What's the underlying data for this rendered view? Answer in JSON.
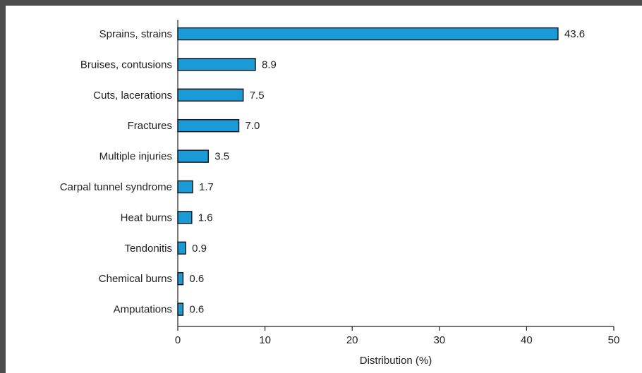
{
  "chart_data": {
    "type": "bar",
    "orientation": "horizontal",
    "categories": [
      "Sprains, strains",
      "Bruises, contusions",
      "Cuts, lacerations",
      "Fractures",
      "Multiple injuries",
      "Carpal tunnel syndrome",
      "Heat burns",
      "Tendonitis",
      "Chemical burns",
      "Amputations"
    ],
    "values": [
      43.6,
      8.9,
      7.5,
      7.0,
      3.5,
      1.7,
      1.6,
      0.9,
      0.6,
      0.6
    ],
    "value_labels": [
      "43.6",
      "8.9",
      "7.5",
      "7.0",
      "3.5",
      "1.7",
      "1.6",
      "0.9",
      "0.6",
      "0.6"
    ],
    "xlabel": "Distribution (%)",
    "ylabel": "",
    "xlim": [
      0,
      50
    ],
    "xticks": [
      0,
      10,
      20,
      30,
      40,
      50
    ],
    "grid": false,
    "bar_color": "#1a9ad6",
    "bar_edge_color": "#1a1a1a"
  }
}
